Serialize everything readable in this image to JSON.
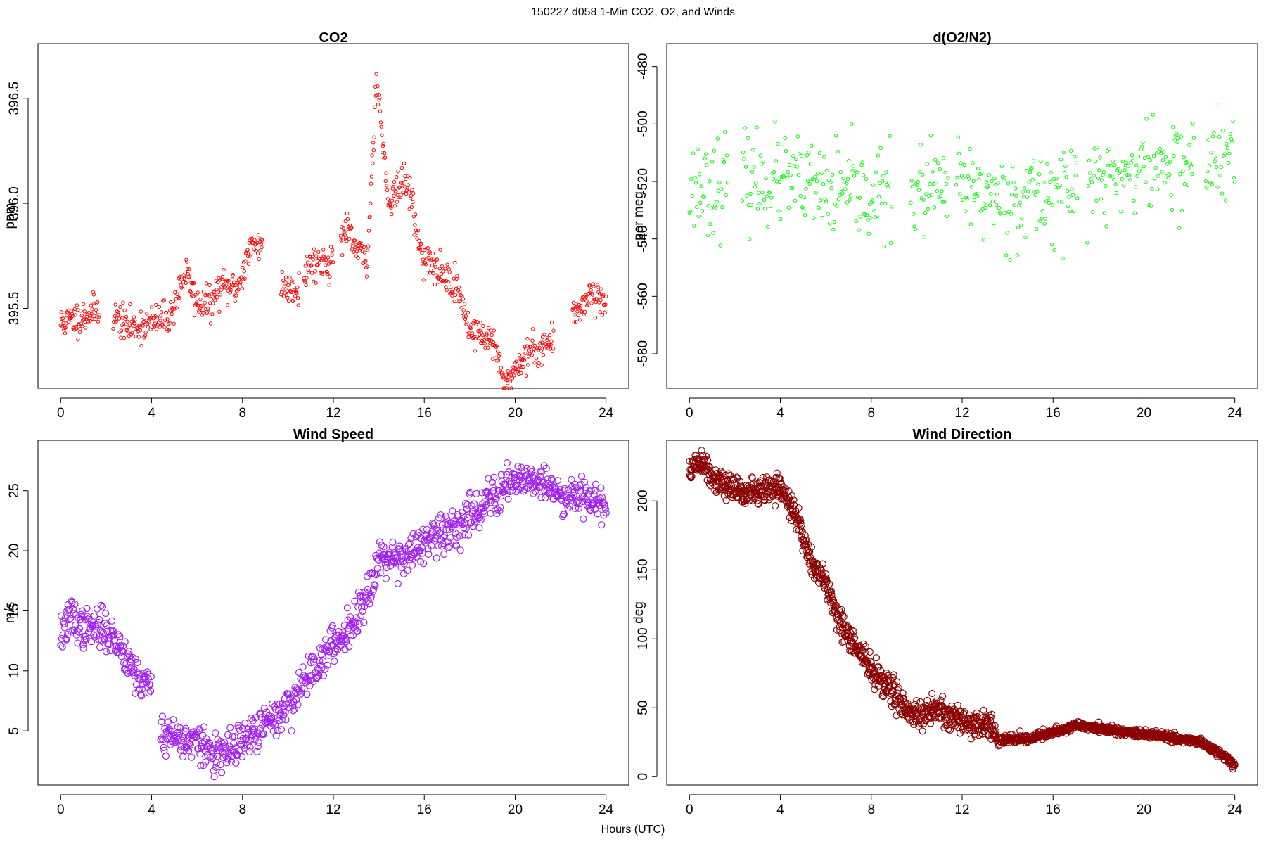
{
  "figure": {
    "suptitle": "150227   d058   1-Min CO2, O2, and Winds",
    "xlabel": "Hours (UTC)"
  },
  "chart_data": [
    {
      "id": "co2",
      "type": "scatter",
      "title": "CO2",
      "ylabel": "ppm",
      "color": "#ff0000",
      "marker_radius_class": "small",
      "xlim": [
        -1,
        25
      ],
      "ylim": [
        395.12,
        396.76
      ],
      "xticks": [
        0,
        4,
        8,
        12,
        16,
        20,
        24
      ],
      "yticks": [
        395.5,
        396.0,
        396.5
      ],
      "ytick_labels": [
        "395.5",
        "396.0",
        "396.5"
      ],
      "x_range": [
        0.0,
        24.0
      ],
      "gaps": [
        [
          1.7,
          2.3
        ],
        [
          8.9,
          9.7
        ],
        [
          10.5,
          10.7
        ],
        [
          12.0,
          12.3
        ],
        [
          21.7,
          22.5
        ]
      ],
      "profile": [
        [
          0.0,
          395.43
        ],
        [
          1.0,
          395.46
        ],
        [
          1.7,
          395.5
        ],
        [
          2.3,
          395.47
        ],
        [
          3.0,
          395.41
        ],
        [
          4.0,
          395.43
        ],
        [
          4.8,
          395.46
        ],
        [
          5.5,
          395.68
        ],
        [
          6.0,
          395.52
        ],
        [
          6.6,
          395.52
        ],
        [
          7.0,
          395.6
        ],
        [
          7.8,
          395.6
        ],
        [
          8.3,
          395.78
        ],
        [
          8.9,
          395.82
        ],
        [
          9.7,
          395.6
        ],
        [
          10.5,
          395.6
        ],
        [
          11.0,
          395.72
        ],
        [
          12.0,
          395.72
        ],
        [
          12.5,
          395.88
        ],
        [
          13.0,
          395.78
        ],
        [
          13.5,
          395.72
        ],
        [
          13.9,
          396.62
        ],
        [
          14.4,
          396.02
        ],
        [
          15.0,
          396.08
        ],
        [
          15.3,
          396.1
        ],
        [
          15.8,
          395.78
        ],
        [
          16.5,
          395.68
        ],
        [
          17.0,
          395.65
        ],
        [
          17.5,
          395.58
        ],
        [
          18.0,
          395.4
        ],
        [
          19.0,
          395.35
        ],
        [
          19.5,
          395.14
        ],
        [
          20.5,
          395.28
        ],
        [
          21.7,
          395.35
        ],
        [
          22.5,
          395.45
        ],
        [
          23.3,
          395.58
        ],
        [
          24.0,
          395.52
        ]
      ],
      "noise": 0.04,
      "points_per_hour": 42,
      "seed": 11
    },
    {
      "id": "o2",
      "type": "scatter",
      "title": "d(O2/N2)",
      "ylabel": "per meg",
      "color": "#00ff00",
      "marker_radius_class": "small",
      "xlim": [
        -1,
        25
      ],
      "ylim": [
        -592,
        -472
      ],
      "xticks": [
        0,
        4,
        8,
        12,
        16,
        20,
        24
      ],
      "yticks": [
        -580,
        -560,
        -540,
        -520,
        -500,
        -480
      ],
      "ytick_labels": [
        "-580",
        "-560",
        "-540",
        "-520",
        "-500",
        "-480"
      ],
      "x_range": [
        0.0,
        24.0
      ],
      "gaps": [
        [
          1.7,
          2.3
        ],
        [
          8.9,
          9.7
        ],
        [
          11.4,
          11.7
        ],
        [
          17.1,
          17.5
        ],
        [
          22.2,
          22.7
        ]
      ],
      "profile": [
        [
          0.0,
          -522
        ],
        [
          2.0,
          -520
        ],
        [
          4.0,
          -519
        ],
        [
          6.0,
          -524
        ],
        [
          8.0,
          -525
        ],
        [
          10.0,
          -524
        ],
        [
          12.0,
          -522
        ],
        [
          14.0,
          -526
        ],
        [
          16.0,
          -524
        ],
        [
          18.0,
          -520
        ],
        [
          20.0,
          -515
        ],
        [
          22.0,
          -514
        ],
        [
          24.0,
          -512
        ]
      ],
      "noise": 8,
      "points_per_hour": 25,
      "seed": 23
    },
    {
      "id": "wind_speed",
      "type": "scatter",
      "title": "Wind Speed",
      "ylabel": "m/s",
      "color": "#a020f0",
      "marker_radius_class": "large",
      "xlim": [
        -1,
        25
      ],
      "ylim": [
        0.5,
        29.2
      ],
      "xticks": [
        0,
        4,
        8,
        12,
        16,
        20,
        24
      ],
      "yticks": [
        5,
        10,
        15,
        20,
        25
      ],
      "ytick_labels": [
        "5",
        "10",
        "15",
        "20",
        "25"
      ],
      "x_range": [
        0.0,
        24.0
      ],
      "gaps": [
        [
          4.0,
          4.4
        ]
      ],
      "profile": [
        [
          0.0,
          13.0
        ],
        [
          0.5,
          14.5
        ],
        [
          1.0,
          13.5
        ],
        [
          2.0,
          13.5
        ],
        [
          3.0,
          11.0
        ],
        [
          3.5,
          9.0
        ],
        [
          4.0,
          9.0
        ],
        [
          4.4,
          5.0
        ],
        [
          5.0,
          4.5
        ],
        [
          6.0,
          4.0
        ],
        [
          7.0,
          2.8
        ],
        [
          8.0,
          4.0
        ],
        [
          9.0,
          5.5
        ],
        [
          10.0,
          7.0
        ],
        [
          11.0,
          10.0
        ],
        [
          12.0,
          12.0
        ],
        [
          13.0,
          14.5
        ],
        [
          13.5,
          16.5
        ],
        [
          14.0,
          19.5
        ],
        [
          15.0,
          19.5
        ],
        [
          16.0,
          20.5
        ],
        [
          17.0,
          21.5
        ],
        [
          18.0,
          23.0
        ],
        [
          19.0,
          24.5
        ],
        [
          20.0,
          26.0
        ],
        [
          21.0,
          26.0
        ],
        [
          22.0,
          24.5
        ],
        [
          23.0,
          25.0
        ],
        [
          24.0,
          23.5
        ]
      ],
      "noise": 0.8,
      "points_per_hour": 40,
      "seed": 37
    },
    {
      "id": "wind_direction",
      "type": "scatter",
      "title": "Wind Direction",
      "ylabel": "deg",
      "color": "#8b0000",
      "marker_radius_class": "large",
      "xlim": [
        -1,
        25
      ],
      "ylim": [
        -6,
        244
      ],
      "xticks": [
        0,
        4,
        8,
        12,
        16,
        20,
        24
      ],
      "yticks": [
        0,
        50,
        100,
        150,
        200
      ],
      "ytick_labels": [
        "0",
        "50",
        "100",
        "150",
        "200"
      ],
      "x_range": [
        0.0,
        24.0
      ],
      "gaps": [],
      "profile": [
        [
          0.0,
          222
        ],
        [
          0.5,
          230
        ],
        [
          1.0,
          215
        ],
        [
          2.0,
          208
        ],
        [
          3.0,
          206
        ],
        [
          4.0,
          210
        ],
        [
          4.5,
          195
        ],
        [
          5.0,
          175
        ],
        [
          5.5,
          150
        ],
        [
          6.0,
          140
        ],
        [
          6.5,
          118
        ],
        [
          7.0,
          100
        ],
        [
          7.5,
          90
        ],
        [
          8.0,
          78
        ],
        [
          8.5,
          67
        ],
        [
          9.0,
          62
        ],
        [
          9.5,
          50
        ],
        [
          10.0,
          45
        ],
        [
          11.0,
          48
        ],
        [
          12.0,
          40
        ],
        [
          13.3,
          37
        ],
        [
          13.5,
          26
        ],
        [
          15.0,
          28
        ],
        [
          17.0,
          37
        ],
        [
          19.0,
          33
        ],
        [
          21.0,
          29
        ],
        [
          22.5,
          25
        ],
        [
          23.5,
          15
        ],
        [
          24.0,
          8
        ]
      ],
      "noise_until_13_5": 5,
      "noise_after_13_5": 1.5,
      "points_per_hour": 60,
      "seed": 51
    }
  ]
}
